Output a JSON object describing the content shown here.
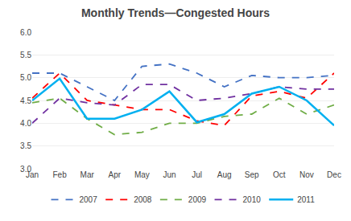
{
  "chart_data": {
    "type": "line",
    "title": "Monthly Trends—Congested Hours",
    "categories": [
      "Jan",
      "Feb",
      "Mar",
      "Apr",
      "May",
      "Jun",
      "Jul",
      "Aug",
      "Sep",
      "Oct",
      "Nov",
      "Dec"
    ],
    "series": [
      {
        "name": "2007",
        "color": "#4472C4",
        "line_style": "dashed",
        "values": [
          5.1,
          5.1,
          4.8,
          4.5,
          5.25,
          5.3,
          5.1,
          4.8,
          5.05,
          5.0,
          5.0,
          5.05
        ]
      },
      {
        "name": "2008",
        "color": "#FF0000",
        "line_style": "dashed",
        "values": [
          4.55,
          5.1,
          4.5,
          4.4,
          4.3,
          4.3,
          4.05,
          3.95,
          4.6,
          4.7,
          4.55,
          5.1
        ]
      },
      {
        "name": "2009",
        "color": "#70AD47",
        "line_style": "dashed",
        "values": [
          4.45,
          4.55,
          4.1,
          3.75,
          3.8,
          4.0,
          4.0,
          4.15,
          4.2,
          4.55,
          4.2,
          4.4
        ]
      },
      {
        "name": "2010",
        "color": "#7030A0",
        "line_style": "dashed",
        "values": [
          4.0,
          4.55,
          4.45,
          4.4,
          4.85,
          4.85,
          4.5,
          4.55,
          4.65,
          4.8,
          4.75,
          4.75
        ]
      },
      {
        "name": "2011",
        "color": "#00B0F0",
        "line_style": "solid",
        "values": [
          4.5,
          4.98,
          4.1,
          4.1,
          4.3,
          4.7,
          4.02,
          4.2,
          4.65,
          4.8,
          4.5,
          3.95
        ]
      }
    ],
    "ylim": [
      3.0,
      6.0
    ],
    "yticks": [
      {
        "value": 3.0,
        "label": "3.0"
      },
      {
        "value": 3.5,
        "label": "3.5"
      },
      {
        "value": 4.0,
        "label": "4.0"
      },
      {
        "value": 4.5,
        "label": "4.5"
      },
      {
        "value": 5.0,
        "label": "5.0"
      },
      {
        "value": 5.5,
        "label": "5.5"
      },
      {
        "value": 6.0,
        "label": "6.0"
      }
    ],
    "grid": "y",
    "legend": "bottom"
  }
}
